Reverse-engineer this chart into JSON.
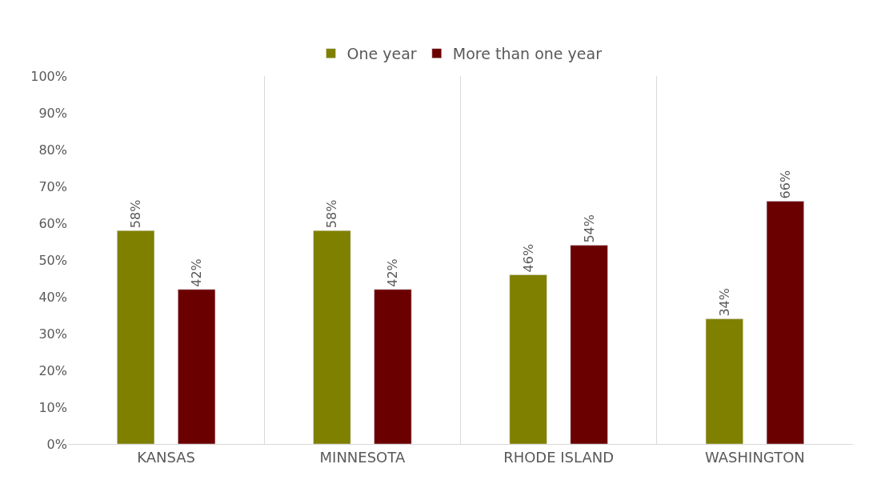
{
  "chart_data": {
    "type": "bar",
    "categories": [
      "KANSAS",
      "MINNESOTA",
      "RHODE ISLAND",
      "WASHINGTON"
    ],
    "series": [
      {
        "name": "One year",
        "color": "#7f7f00",
        "values": [
          58,
          58,
          46,
          34
        ],
        "value_labels": [
          "58%",
          "58%",
          "46%",
          "34%"
        ]
      },
      {
        "name": "More than one year",
        "color": "#6b0000",
        "values": [
          42,
          42,
          54,
          66
        ],
        "value_labels": [
          "42%",
          "42%",
          "54%",
          "66%"
        ]
      }
    ],
    "ylim": [
      0,
      100
    ],
    "yticks": [
      {
        "value": 0,
        "label": "0%"
      },
      {
        "value": 10,
        "label": "10%"
      },
      {
        "value": 20,
        "label": "20%"
      },
      {
        "value": 30,
        "label": "30%"
      },
      {
        "value": 40,
        "label": "40%"
      },
      {
        "value": 50,
        "label": "50%"
      },
      {
        "value": 60,
        "label": "60%"
      },
      {
        "value": 70,
        "label": "70%"
      },
      {
        "value": 80,
        "label": "80%"
      },
      {
        "value": 90,
        "label": "90%"
      },
      {
        "value": 100,
        "label": "100%"
      }
    ],
    "grid": "x",
    "legend": "top"
  }
}
